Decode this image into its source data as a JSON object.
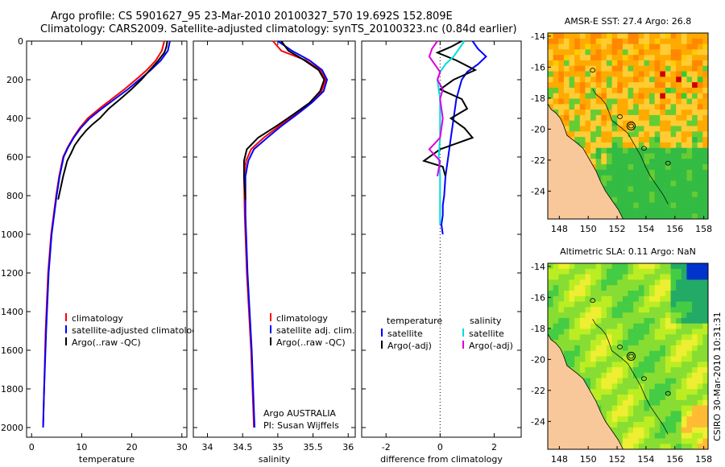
{
  "header": {
    "line1": "Argo profile: CS 5901627_95 23-Mar-2010 20100327_570 19.692S 152.809E",
    "line2": "Climatology: CARS2009. Satellite-adjusted climatology: synTS_20100323.nc (0.84d earlier)"
  },
  "footer": {
    "stamp": "CSIRO 30-Mar-2010 10:31:31"
  },
  "colors": {
    "climatology": "#ff0000",
    "satellite": "#0000ff",
    "argo": "#000000",
    "sat_sal": "#00dddd",
    "argo_sal": "#dd00dd"
  },
  "chart_data": [
    {
      "type": "line",
      "xlabel": "temperature",
      "xlim": [
        -1,
        31
      ],
      "xticks": [
        0,
        10,
        20,
        30
      ],
      "ylim": [
        2050,
        0
      ],
      "yticks": [
        0,
        200,
        400,
        600,
        800,
        1000,
        1200,
        1400,
        1600,
        1800,
        2000
      ],
      "legend": [
        "climatology",
        "satellite-adjusted climatology",
        "Argo(..raw -QC)"
      ],
      "series": [
        {
          "name": "climatology",
          "color": "#ff0000",
          "x": [
            26.5,
            26.0,
            24.8,
            23.0,
            20.8,
            18.5,
            16.0,
            13.5,
            11.2,
            9.6,
            8.3,
            7.2,
            6.3,
            5.5,
            4.9,
            4.4,
            3.9,
            3.3,
            2.8,
            2.5,
            2.3
          ],
          "y": [
            0,
            50,
            100,
            150,
            200,
            250,
            300,
            350,
            400,
            450,
            500,
            550,
            600,
            700,
            800,
            900,
            1000,
            1200,
            1500,
            1800,
            2000
          ]
        },
        {
          "name": "satellite-adjusted climatology",
          "color": "#0000ff",
          "x": [
            27.6,
            27.2,
            25.8,
            23.8,
            21.5,
            19.2,
            16.6,
            14.0,
            11.6,
            9.8,
            8.4,
            7.3,
            6.4,
            5.6,
            5.0,
            4.5,
            4.0,
            3.4,
            2.9,
            2.5,
            2.3
          ],
          "y": [
            0,
            50,
            100,
            150,
            200,
            250,
            300,
            350,
            400,
            450,
            500,
            550,
            600,
            700,
            800,
            900,
            1000,
            1200,
            1500,
            1800,
            2000
          ]
        },
        {
          "name": "Argo(..raw -QC)",
          "color": "#000000",
          "x": [
            27.1,
            26.9,
            26.5,
            25.3,
            23.6,
            21.9,
            19.9,
            17.7,
            15.4,
            13.6,
            12.2,
            11.0,
            9.7,
            8.6,
            7.9,
            7.1,
            6.7,
            6.3,
            5.8,
            5.3
          ],
          "y": [
            0,
            30,
            60,
            100,
            150,
            200,
            250,
            300,
            350,
            400,
            430,
            460,
            500,
            540,
            580,
            620,
            660,
            700,
            760,
            820
          ]
        }
      ]
    },
    {
      "type": "line",
      "xlabel": "salinity",
      "xlim": [
        33.8,
        36.1
      ],
      "xticks": [
        34,
        34.5,
        35,
        35.5,
        36
      ],
      "ylim": [
        2050,
        0
      ],
      "yticks": [
        0,
        200,
        400,
        600,
        800,
        1000,
        1200,
        1400,
        1600,
        1800,
        2000
      ],
      "legend": [
        "climatology",
        "satellite adj. clim.",
        "Argo(..raw -QC)"
      ],
      "annotation": [
        "Argo AUSTRALIA",
        "PI: Susan Wijffels"
      ],
      "series": [
        {
          "name": "climatology",
          "color": "#ff0000",
          "x": [
            34.93,
            35.05,
            35.4,
            35.6,
            35.68,
            35.62,
            35.45,
            35.25,
            35.02,
            34.8,
            34.62,
            34.55,
            34.52,
            34.53,
            34.56,
            34.62,
            34.66
          ],
          "y": [
            0,
            50,
            100,
            150,
            200,
            260,
            320,
            380,
            440,
            500,
            560,
            620,
            700,
            900,
            1200,
            1600,
            2000
          ]
        },
        {
          "name": "satellite adj. clim.",
          "color": "#0000ff",
          "x": [
            35.0,
            35.2,
            35.45,
            35.63,
            35.7,
            35.65,
            35.48,
            35.27,
            35.05,
            34.85,
            34.66,
            34.58,
            34.54,
            34.54,
            34.57,
            34.63,
            34.67
          ],
          "y": [
            0,
            50,
            100,
            150,
            200,
            260,
            320,
            380,
            440,
            500,
            560,
            620,
            700,
            900,
            1200,
            1600,
            2000
          ]
        },
        {
          "name": "Argo(..raw -QC)",
          "color": "#000000",
          "x": [
            35.05,
            35.15,
            35.38,
            35.58,
            35.66,
            35.6,
            35.45,
            35.22,
            34.98,
            34.72,
            34.56,
            34.52,
            34.52,
            34.54
          ],
          "y": [
            0,
            50,
            100,
            150,
            200,
            260,
            320,
            380,
            440,
            500,
            560,
            620,
            700,
            820
          ]
        }
      ]
    },
    {
      "type": "line",
      "xlabel": "difference from climatology",
      "xlim": [
        -2.9,
        3.0
      ],
      "xticks": [
        -2,
        0,
        2
      ],
      "ylim": [
        2050,
        0
      ],
      "zero_line": true,
      "legend": [
        "temperature",
        "satellite",
        "Argo(-adj)",
        "salinity",
        "satellite",
        "Argo(-adj)"
      ],
      "series": [
        {
          "name": "temperature satellite",
          "color": "#0000ff",
          "x": [
            1.2,
            1.4,
            1.7,
            1.4,
            1.0,
            0.8,
            0.7,
            0.6,
            0.5,
            0.4,
            0.3,
            0.2,
            0.15,
            0.1,
            0.1,
            0.05,
            0.1
          ],
          "y": [
            0,
            40,
            80,
            120,
            160,
            200,
            250,
            300,
            400,
            500,
            600,
            700,
            800,
            850,
            900,
            950,
            1000
          ]
        },
        {
          "name": "temperature Argo(-adj)",
          "color": "#000000",
          "x": [
            0.8,
            0.4,
            -0.1,
            0.6,
            1.3,
            0.5,
            0.0,
            0.8,
            1.0,
            0.4,
            0.9,
            1.2,
            0.6,
            0.0,
            -0.3,
            -0.6,
            0.1,
            0.2
          ],
          "y": [
            0,
            30,
            60,
            100,
            150,
            200,
            250,
            300,
            350,
            400,
            450,
            500,
            530,
            560,
            590,
            620,
            650,
            700
          ]
        },
        {
          "name": "salinity satellite",
          "color": "#00dddd",
          "x": [
            0.9,
            0.7,
            0.5,
            0.2,
            0.0,
            -0.1,
            0.0,
            0.0,
            0.0,
            -0.05,
            0.0,
            0.0,
            0.0
          ],
          "y": [
            0,
            40,
            80,
            120,
            160,
            200,
            300,
            400,
            500,
            600,
            700,
            800,
            950
          ]
        },
        {
          "name": "salinity Argo(-adj)",
          "color": "#dd00dd",
          "x": [
            -0.1,
            -0.3,
            -0.4,
            -0.2,
            0.0,
            -0.1,
            0.1,
            0.0,
            0.1,
            0.0,
            -0.4,
            0.0,
            -0.1
          ],
          "y": [
            0,
            40,
            80,
            120,
            160,
            200,
            250,
            300,
            400,
            500,
            560,
            620,
            700
          ]
        }
      ]
    },
    {
      "type": "heatmap",
      "title": "AMSR-E SST: 27.4 Argo: 26.8",
      "xticks": [
        148,
        150,
        152,
        154,
        156,
        158
      ],
      "yticks": [
        -14,
        -16,
        -18,
        -20,
        -22,
        -24
      ],
      "xlim": [
        147.2,
        158.3
      ],
      "ylim": [
        -25.8,
        -13.8
      ]
    },
    {
      "type": "heatmap",
      "title": "Altimetric SLA: 0.11 Argo: NaN",
      "xticks": [
        148,
        150,
        152,
        154,
        156,
        158
      ],
      "yticks": [
        -14,
        -16,
        -18,
        -20,
        -22,
        -24
      ],
      "xlim": [
        147.2,
        158.3
      ],
      "ylim": [
        -25.8,
        -13.8
      ]
    }
  ]
}
